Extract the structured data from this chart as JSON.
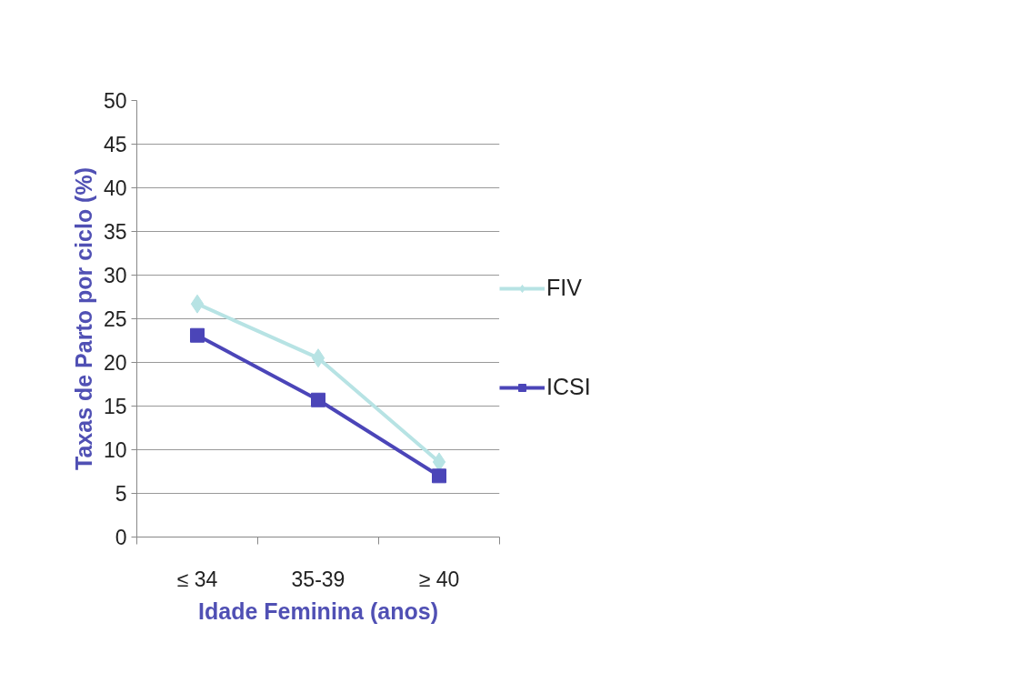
{
  "chart_data": {
    "type": "line",
    "xlabel": "Idade Feminina (anos)",
    "ylabel": "Taxas de Parto por ciclo (%)",
    "categories": [
      "≤ 34",
      "35-39",
      "≥ 40"
    ],
    "series": [
      {
        "name": "FIV",
        "color": "#b7e3e4",
        "marker": "diamond",
        "values": [
          26.7,
          20.5,
          8.6
        ]
      },
      {
        "name": "ICSI",
        "color": "#4b45b8",
        "marker": "square",
        "values": [
          23.1,
          15.7,
          7.0
        ]
      }
    ],
    "ylim": [
      0,
      50
    ],
    "yticks": [
      0,
      5,
      10,
      15,
      20,
      25,
      30,
      35,
      40,
      45,
      50
    ],
    "grid": "y",
    "legend": "right",
    "line_style": "solid"
  }
}
